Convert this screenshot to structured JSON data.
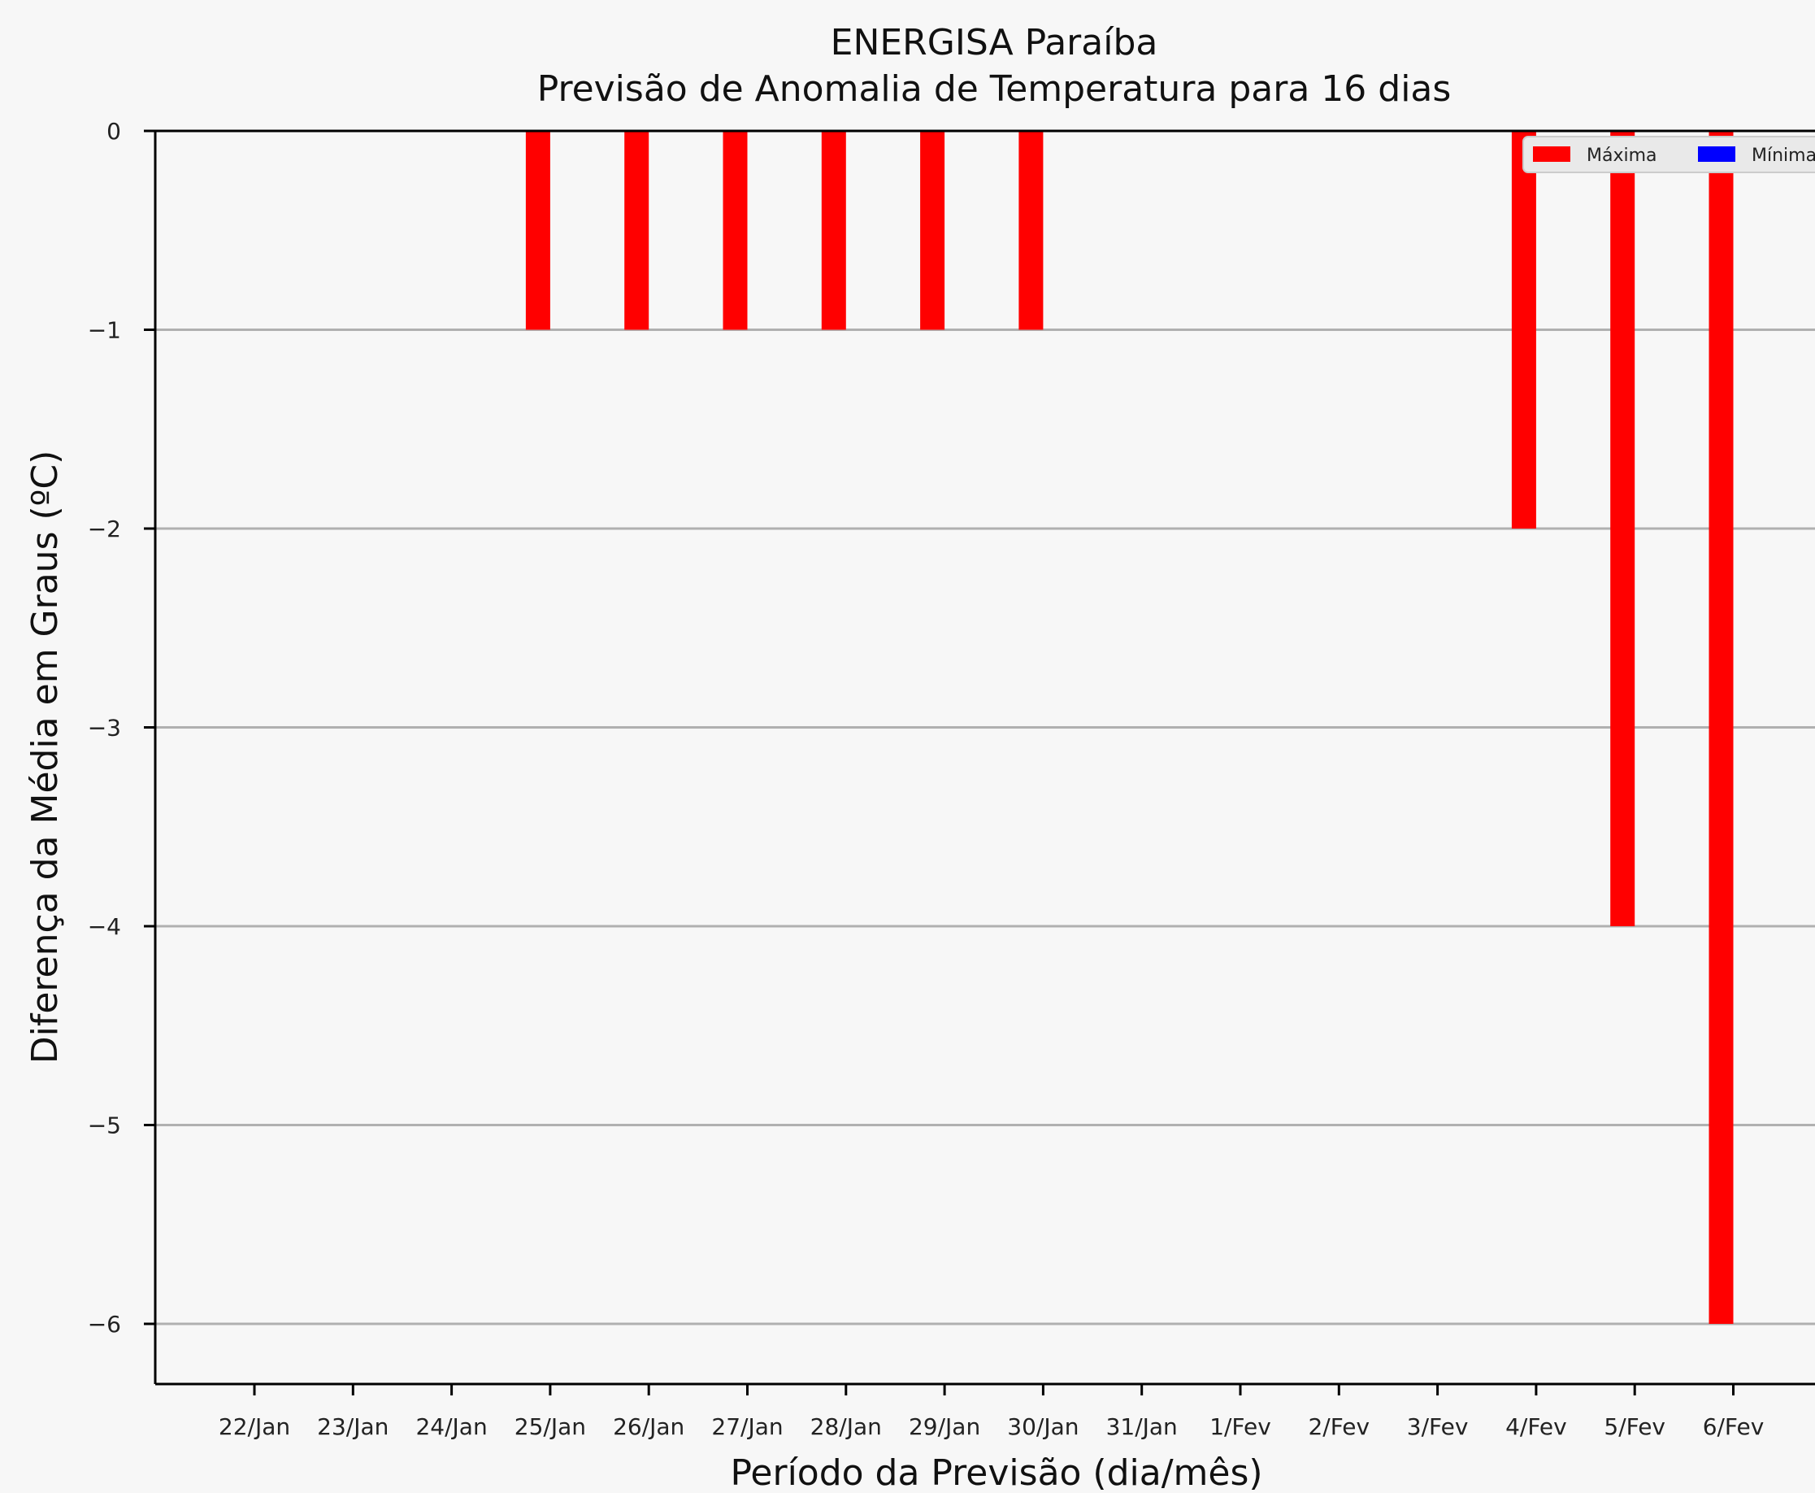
{
  "chart_data": {
    "type": "bar",
    "title": "ENERGISA Paraíba",
    "subtitle": "Previsão de Anomalia de Temperatura para 16 dias",
    "xlabel": "Período da Previsão (dia/mês)",
    "ylabel": "Diferença da Média em Graus (ºC)",
    "categories": [
      "22/Jan",
      "23/Jan",
      "24/Jan",
      "25/Jan",
      "26/Jan",
      "27/Jan",
      "28/Jan",
      "29/Jan",
      "30/Jan",
      "31/Jan",
      "1/Fev",
      "2/Fev",
      "3/Fev",
      "4/Fev",
      "5/Fev",
      "6/Fev"
    ],
    "series": [
      {
        "name": "Máxima",
        "color": "#ff0000",
        "values": [
          0,
          0,
          0,
          -1,
          -1,
          -1,
          -1,
          -1,
          -1,
          0,
          0,
          0,
          0,
          -2,
          -4,
          -6
        ]
      },
      {
        "name": "Mínima",
        "color": "#0000ff",
        "values": [
          0,
          0,
          0,
          0,
          0,
          0,
          0,
          0,
          0,
          0,
          0,
          0,
          0,
          0,
          0,
          0
        ]
      }
    ],
    "ylim": [
      -6.3,
      0
    ],
    "yticks": [
      0,
      -1,
      -2,
      -3,
      -4,
      -5,
      -6
    ],
    "ytick_labels": [
      "0",
      "−1",
      "−2",
      "−3",
      "−4",
      "−5",
      "−6"
    ],
    "grid": true,
    "legend_position": "top-right"
  }
}
